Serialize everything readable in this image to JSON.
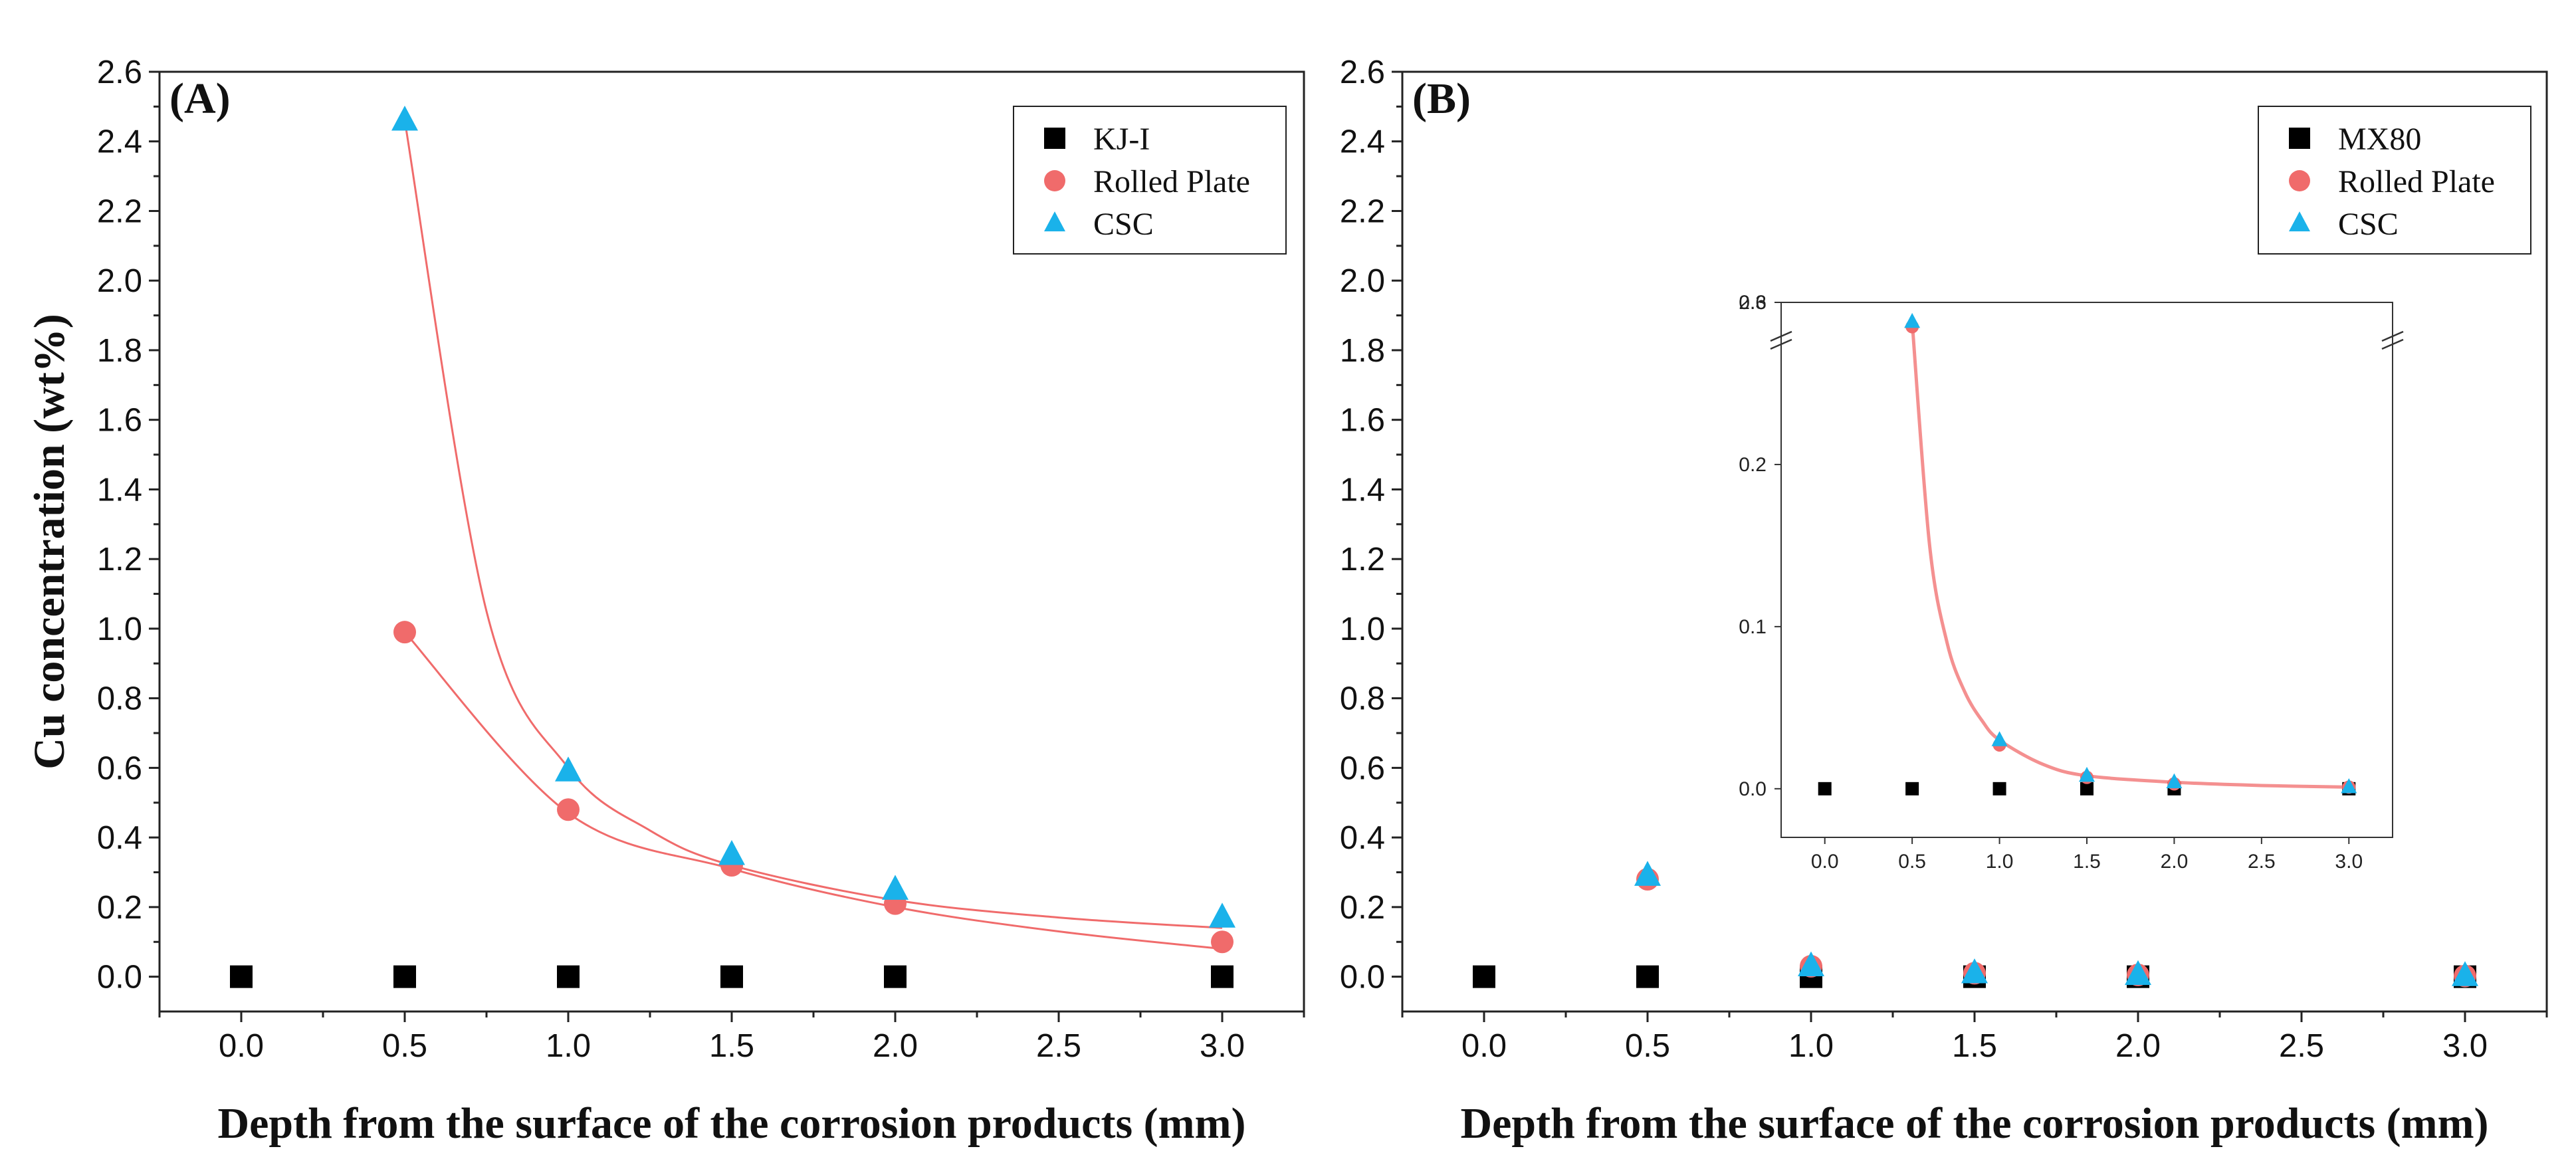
{
  "chart_data": [
    {
      "panel_label": "(A)",
      "type": "scatter",
      "xlabel": "Depth from the surface of the corrosion products (mm)",
      "ylabel": "Cu concentration (wt%)",
      "xlim": [
        -0.25,
        3.25
      ],
      "ylim": [
        -0.1,
        2.6
      ],
      "xticks": [
        "0.0",
        "0.5",
        "1.0",
        "1.5",
        "2.0",
        "2.5",
        "3.0"
      ],
      "yticks": [
        "0.0",
        "0.2",
        "0.4",
        "0.6",
        "0.8",
        "1.0",
        "1.2",
        "1.4",
        "1.6",
        "1.8",
        "2.0",
        "2.2",
        "2.4",
        "2.6"
      ],
      "legend_position": "top-right",
      "series": [
        {
          "name": "KJ-I",
          "marker": "square",
          "color": "#000000",
          "x": [
            0.0,
            0.5,
            1.0,
            1.5,
            2.0,
            3.0
          ],
          "y": [
            0.0,
            0.0,
            0.0,
            0.0,
            0.0,
            0.0
          ]
        },
        {
          "name": "Rolled Plate",
          "marker": "circle",
          "color": "#f06b6b",
          "x": [
            0.5,
            1.0,
            1.5,
            2.0,
            3.0
          ],
          "y": [
            0.99,
            0.48,
            0.32,
            0.21,
            0.1
          ]
        },
        {
          "name": "CSC",
          "marker": "triangle",
          "color": "#1ab2ea",
          "x": [
            0.5,
            1.0,
            1.5,
            2.0,
            3.0
          ],
          "y": [
            2.46,
            0.59,
            0.35,
            0.25,
            0.17
          ]
        }
      ],
      "fit_curves": [
        {
          "of": "Rolled Plate",
          "color": "#f06b6b",
          "x": [
            0.5,
            1.0,
            1.5,
            2.0,
            2.5,
            3.0
          ],
          "y": [
            0.99,
            0.47,
            0.31,
            0.2,
            0.13,
            0.08
          ]
        },
        {
          "of": "CSC",
          "color": "#f06b6b",
          "x": [
            0.5,
            0.75,
            1.0,
            1.25,
            1.5,
            2.0,
            2.5,
            3.0
          ],
          "y": [
            2.46,
            1.05,
            0.6,
            0.42,
            0.32,
            0.22,
            0.17,
            0.14
          ]
        }
      ]
    },
    {
      "panel_label": "(B)",
      "type": "scatter",
      "xlabel": "Depth from the surface of the corrosion products (mm)",
      "ylabel": "",
      "xlim": [
        -0.25,
        3.25
      ],
      "ylim": [
        -0.1,
        2.6
      ],
      "xticks": [
        "0.0",
        "0.5",
        "1.0",
        "1.5",
        "2.0",
        "2.5",
        "3.0"
      ],
      "yticks": [
        "0.0",
        "0.2",
        "0.4",
        "0.6",
        "0.8",
        "1.0",
        "1.2",
        "1.4",
        "1.6",
        "1.8",
        "2.0",
        "2.2",
        "2.4",
        "2.6"
      ],
      "legend_position": "top-right",
      "series": [
        {
          "name": "MX80",
          "marker": "square",
          "color": "#000000",
          "x": [
            0.0,
            0.5,
            1.0,
            1.5,
            2.0,
            3.0
          ],
          "y": [
            0.0,
            0.0,
            0.0,
            0.0,
            0.0,
            0.0
          ]
        },
        {
          "name": "Rolled Plate",
          "marker": "circle",
          "color": "#f06b6b",
          "x": [
            0.5,
            1.0,
            1.5,
            2.0,
            3.0
          ],
          "y": [
            0.28,
            0.03,
            0.01,
            0.005,
            0.002
          ]
        },
        {
          "name": "CSC",
          "marker": "triangle",
          "color": "#1ab2ea",
          "x": [
            0.5,
            1.0,
            1.5,
            2.0,
            3.0
          ],
          "y": [
            0.29,
            0.03,
            0.01,
            0.005,
            0.002
          ]
        }
      ],
      "inset": {
        "type": "scatter",
        "xlim": [
          -0.25,
          3.25
        ],
        "ylim": [
          -0.03,
          0.3
        ],
        "axis_break_label": "2.6",
        "xticks": [
          "0.0",
          "0.5",
          "1.0",
          "1.5",
          "2.0",
          "2.5",
          "3.0"
        ],
        "yticks": [
          "0.0",
          "0.1",
          "0.2",
          "0.3"
        ],
        "series": [
          {
            "name": "MX80",
            "x": [
              0.0,
              0.5,
              1.0,
              1.5,
              2.0,
              3.0
            ],
            "y": [
              0.0,
              0.0,
              0.0,
              0.0,
              0.0,
              0.0
            ]
          },
          {
            "name": "Rolled Plate",
            "x": [
              0.5,
              1.0,
              1.5,
              2.0,
              3.0
            ],
            "y": [
              0.285,
              0.027,
              0.007,
              0.003,
              0.001
            ]
          },
          {
            "name": "CSC",
            "x": [
              0.5,
              1.0,
              1.5,
              2.0,
              3.0
            ],
            "y": [
              0.288,
              0.03,
              0.008,
              0.004,
              0.001
            ]
          }
        ],
        "fit_curve": {
          "color": "#f06b6b",
          "x": [
            0.5,
            0.6,
            0.7,
            0.8,
            0.9,
            1.0,
            1.25,
            1.5,
            2.0,
            2.5,
            3.0
          ],
          "y": [
            0.288,
            0.15,
            0.09,
            0.06,
            0.042,
            0.03,
            0.015,
            0.008,
            0.004,
            0.002,
            0.001
          ]
        }
      }
    }
  ]
}
